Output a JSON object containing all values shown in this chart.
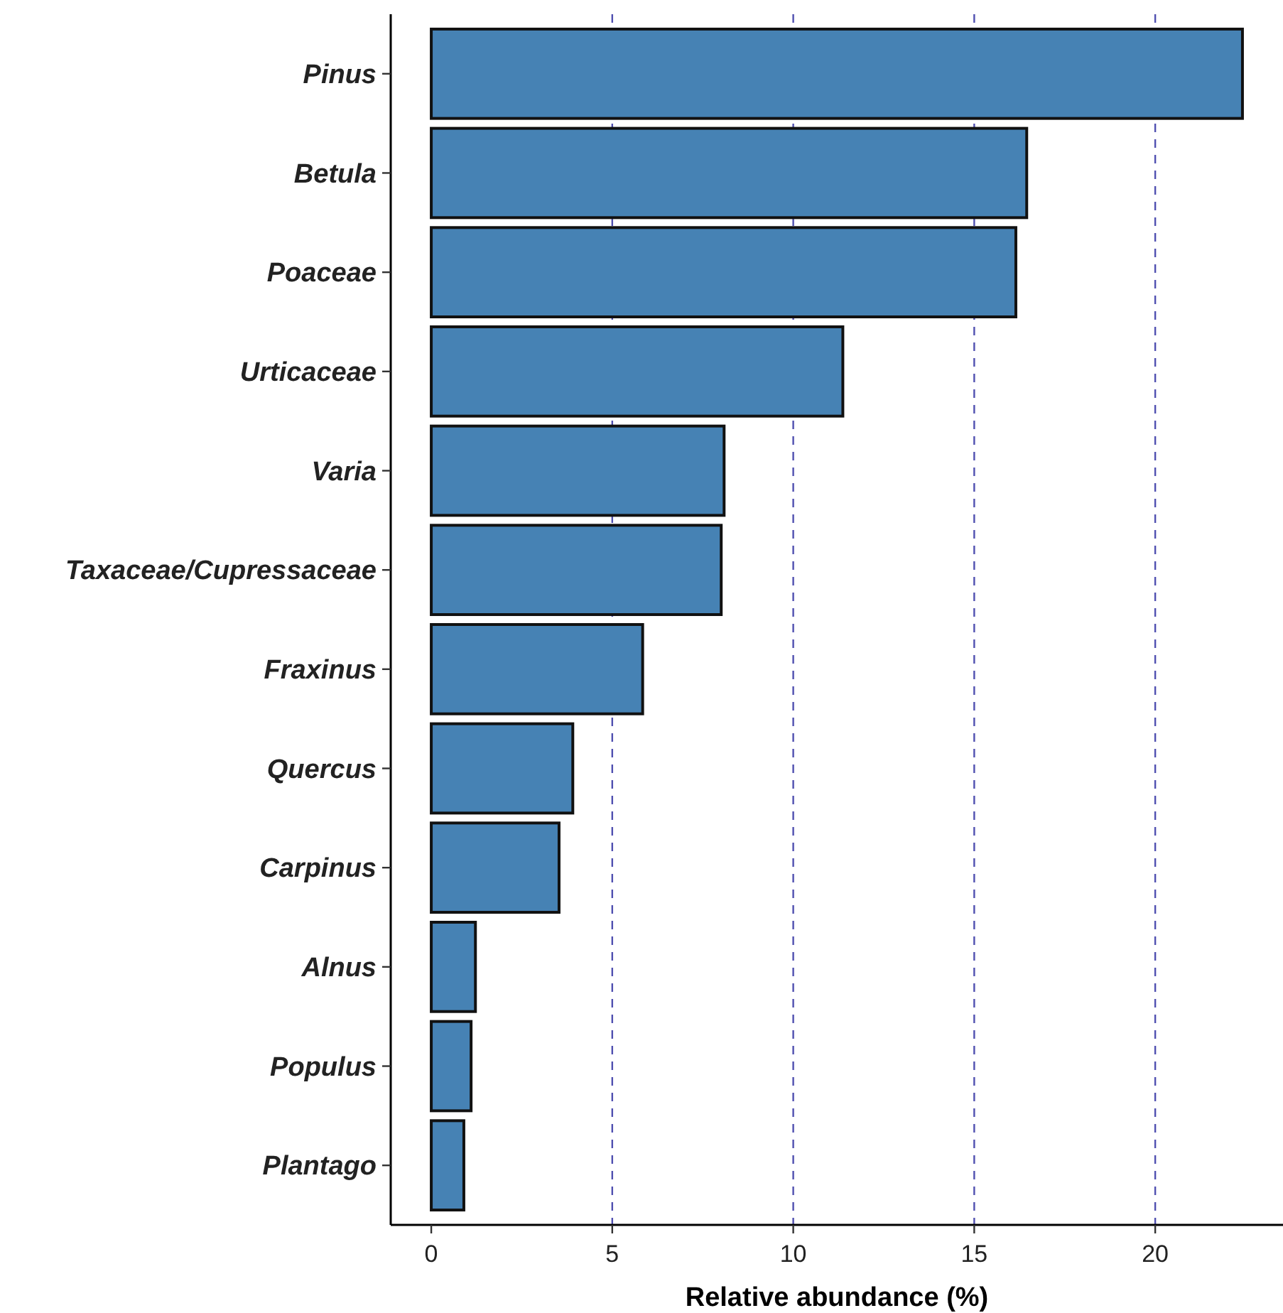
{
  "chart_data": {
    "type": "bar",
    "orientation": "horizontal",
    "xlabel": "Relative abundance (%)",
    "categories": [
      "Pinus",
      "Betula",
      "Poaceae",
      "Urticaceae",
      "Varia",
      "Taxaceae/Cupressaceae",
      "Fraxinus",
      "Quercus",
      "Carpinus",
      "Alnus",
      "Populus",
      "Plantago"
    ],
    "values": [
      22.41,
      16.45,
      16.15,
      11.37,
      8.09,
      8.01,
      5.84,
      3.91,
      3.53,
      1.22,
      1.1,
      0.9
    ],
    "color": "#4682b4",
    "xlim": [
      -1.12,
      23.53
    ],
    "xticks": [
      0,
      5,
      10,
      15,
      20
    ],
    "ref_lines": [
      {
        "axis": "x",
        "value": 5,
        "color": "#5050b0",
        "line_style": "dashed"
      },
      {
        "axis": "x",
        "value": 10,
        "color": "#5050b0",
        "line_style": "dashed"
      },
      {
        "axis": "x",
        "value": 15,
        "color": "#5050b0",
        "line_style": "dashed"
      },
      {
        "axis": "x",
        "value": 20,
        "color": "#5050b0",
        "line_style": "dashed"
      }
    ],
    "grid": false,
    "legend": false
  }
}
